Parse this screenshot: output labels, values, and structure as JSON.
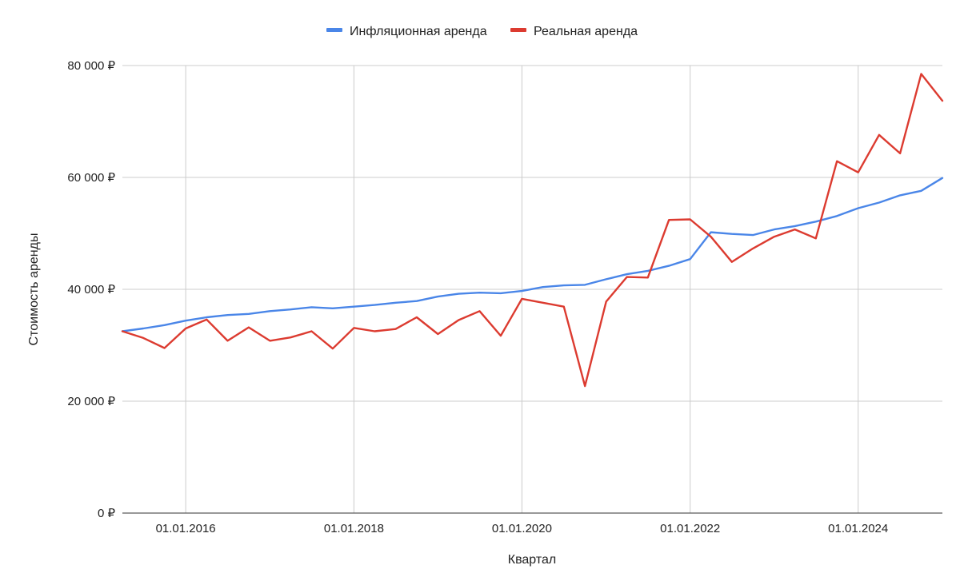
{
  "chart_data": {
    "type": "line",
    "xlabel": "Квартал",
    "ylabel": "Стоимость аренды",
    "ylim": [
      0,
      80000
    ],
    "y_ticks": [
      {
        "value": 0,
        "label": "0 ₽"
      },
      {
        "value": 20000,
        "label": "20 000 ₽"
      },
      {
        "value": 40000,
        "label": "40 000 ₽"
      },
      {
        "value": 60000,
        "label": "60 000 ₽"
      },
      {
        "value": 80000,
        "label": "80 000 ₽"
      }
    ],
    "xlim": [
      "2015-04-01",
      "2025-01-01"
    ],
    "x_ticks": [
      {
        "value": "2016-01-01",
        "label": "01.01.2016"
      },
      {
        "value": "2018-01-01",
        "label": "01.01.2018"
      },
      {
        "value": "2020-01-01",
        "label": "01.01.2020"
      },
      {
        "value": "2022-01-01",
        "label": "01.01.2022"
      },
      {
        "value": "2024-01-01",
        "label": "01.01.2024"
      }
    ],
    "grid": true,
    "legend_position": "top",
    "x": [
      "2015-04-01",
      "2015-07-01",
      "2015-10-01",
      "2016-01-01",
      "2016-04-01",
      "2016-07-01",
      "2016-10-01",
      "2017-01-01",
      "2017-04-01",
      "2017-07-01",
      "2017-10-01",
      "2018-01-01",
      "2018-04-01",
      "2018-07-01",
      "2018-10-01",
      "2019-01-01",
      "2019-04-01",
      "2019-07-01",
      "2019-10-01",
      "2020-01-01",
      "2020-04-01",
      "2020-07-01",
      "2020-10-01",
      "2021-01-01",
      "2021-04-01",
      "2021-07-01",
      "2021-10-01",
      "2022-01-01",
      "2022-04-01",
      "2022-07-01",
      "2022-10-01",
      "2023-01-01",
      "2023-04-01",
      "2023-07-01",
      "2023-10-01",
      "2024-01-01",
      "2024-04-01",
      "2024-07-01",
      "2024-10-01",
      "2025-01-01"
    ],
    "series": [
      {
        "name": "Инфляционная аренда",
        "color": "#4a86e8",
        "values": [
          32500,
          33000,
          33600,
          34400,
          35000,
          35400,
          35600,
          36100,
          36400,
          36800,
          36600,
          36900,
          37200,
          37600,
          37900,
          38700,
          39200,
          39400,
          39300,
          39700,
          40400,
          40700,
          40800,
          41800,
          42700,
          43300,
          44200,
          45400,
          50200,
          49900,
          49700,
          50700,
          51300,
          52100,
          53100,
          54500,
          55500,
          56800,
          57600,
          59900
        ],
        "unit": "₽"
      },
      {
        "name": "Реальная аренда",
        "color": "#dc3b30",
        "values": [
          32500,
          31300,
          29500,
          33000,
          34600,
          30800,
          33200,
          30800,
          31400,
          32500,
          29400,
          33100,
          32500,
          32900,
          35000,
          32000,
          34500,
          36100,
          31700,
          38300,
          37600,
          36900,
          22700,
          37800,
          42200,
          42100,
          52400,
          52500,
          49400,
          44900,
          47300,
          49400,
          50700,
          49100,
          62900,
          60900,
          67600,
          64300,
          78500,
          73700
        ],
        "unit": "₽"
      }
    ]
  }
}
